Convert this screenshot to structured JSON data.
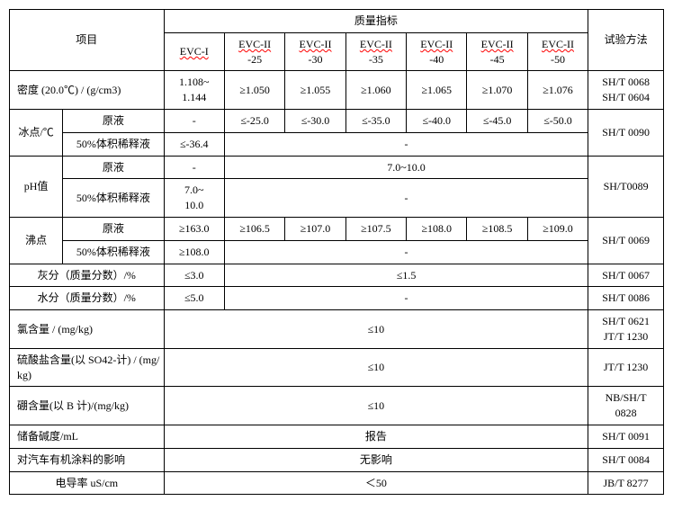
{
  "header": {
    "project": "项目",
    "quality": "质量指标",
    "method": "试验方法",
    "cols": [
      {
        "top": "EVC-I",
        "bot": ""
      },
      {
        "top": "EVC-II",
        "bot": "-25"
      },
      {
        "top": "EVC-II",
        "bot": "-30"
      },
      {
        "top": "EVC-II",
        "bot": "-35"
      },
      {
        "top": "EVC-II",
        "bot": "-40"
      },
      {
        "top": "EVC-II",
        "bot": "-45"
      },
      {
        "top": "EVC-II",
        "bot": "-50"
      }
    ]
  },
  "rows": {
    "density": {
      "label": "密度 (20.0℃) / (g/cm3)",
      "v1": "1.108~\n1.144",
      "v2": "≥1.050",
      "v3": "≥1.055",
      "v4": "≥1.060",
      "v5": "≥1.065",
      "v6": "≥1.070",
      "v7": "≥1.076",
      "method": "SH/T 0068\nSH/T 0604"
    },
    "freeze": {
      "label": "冰点/℃",
      "sub1": "原液",
      "sub2": "50%体积稀释液",
      "r1": {
        "v1": "-",
        "v2": "≤-25.0",
        "v3": "≤-30.0",
        "v4": "≤-35.0",
        "v5": "≤-40.0",
        "v6": "≤-45.0",
        "v7": "≤-50.0"
      },
      "r2": {
        "v1": "≤-36.4",
        "rest": "-"
      },
      "method": "SH/T 0090"
    },
    "ph": {
      "label": "pH值",
      "sub1": "原液",
      "sub2": "50%体积稀释液",
      "r1": {
        "v1": "-",
        "rest": "7.0~10.0"
      },
      "r2": {
        "v1": "7.0~\n10.0",
        "rest": "-"
      },
      "method": "SH/T0089"
    },
    "boil": {
      "label": "沸点",
      "sub1": "原液",
      "sub2": "50%体积稀释液",
      "r1": {
        "v1": "≥163.0",
        "v2": "≥106.5",
        "v3": "≥107.0",
        "v4": "≥107.5",
        "v5": "≥108.0",
        "v6": "≥108.5",
        "v7": "≥109.0"
      },
      "r2": {
        "v1": "≥108.0",
        "rest": "-"
      },
      "method": "SH/T 0069"
    },
    "ash": {
      "label": "灰分（质量分数）/%",
      "v1": "≤3.0",
      "rest": "≤1.5",
      "method": "SH/T 0067"
    },
    "water": {
      "label": "水分（质量分数）/%",
      "v1": "≤5.0",
      "rest": "-",
      "method": "SH/T 0086"
    },
    "cl": {
      "label": "氯含量 / (mg/kg)",
      "all": "≤10",
      "method": "SH/T 0621\nJT/T 1230"
    },
    "so4": {
      "label": "硫酸盐含量(以 SO42-计) / (mg/kg)",
      "all": "≤10",
      "method": "JT/T 1230"
    },
    "boron": {
      "label": "硼含量(以 B 计)/(mg/kg)",
      "all": "≤10",
      "method": "NB/SH/T\n0828"
    },
    "alk": {
      "label": "储备碱度/mL",
      "all": "报告",
      "method": "SH/T 0091"
    },
    "paint": {
      "label": "对汽车有机涂料的影响",
      "all": "无影响",
      "method": "SH/T 0084"
    },
    "cond": {
      "label": "电导率 uS/cm",
      "all": "＜50",
      "method": "JB/T 8277"
    }
  }
}
